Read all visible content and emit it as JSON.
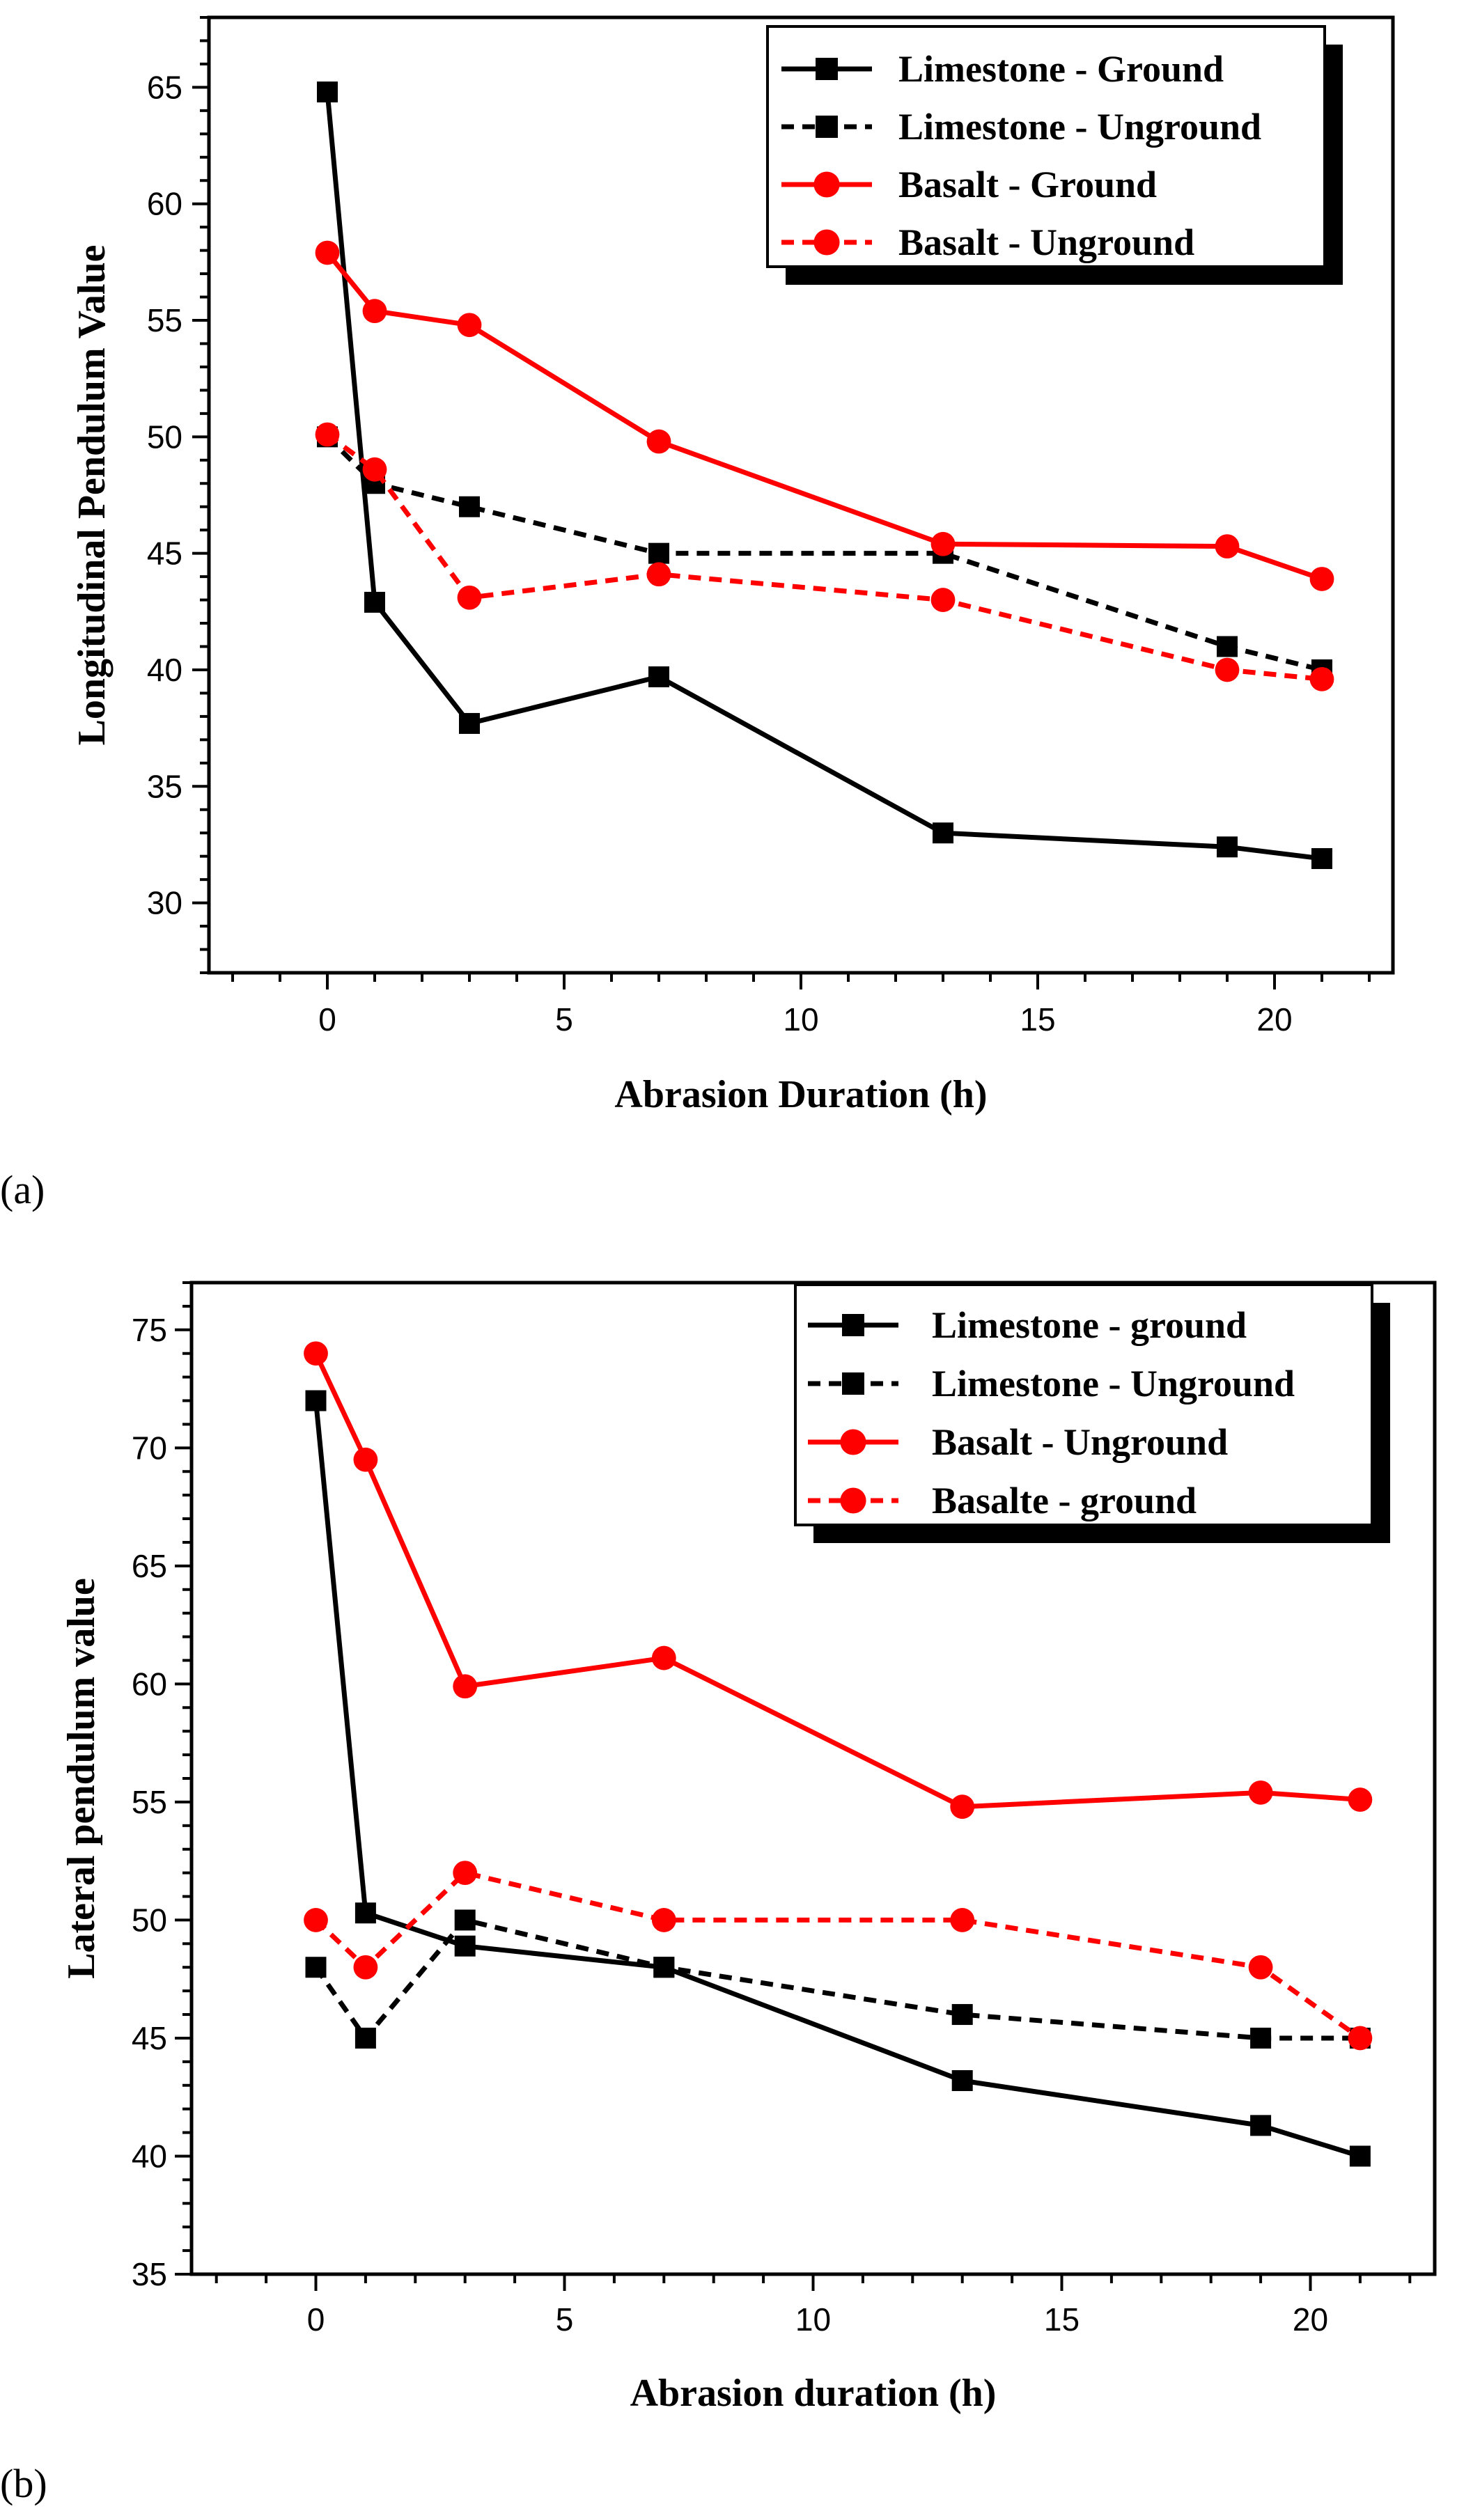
{
  "chart_data": [
    {
      "type": "line",
      "panel_label": "(a)",
      "xlabel": "Abrasion Duration (h)",
      "ylabel": "Longitudinal Pendulum Value",
      "xlim": [
        -2.5,
        22.5
      ],
      "ylim": [
        27,
        68
      ],
      "xticks": [
        0,
        5,
        10,
        15,
        20
      ],
      "yticks": [
        30,
        35,
        40,
        45,
        50,
        55,
        60,
        65
      ],
      "legend_position": "top-right",
      "series": [
        {
          "name": "Limestone - Ground",
          "color": "#000000",
          "dash": "solid",
          "marker": "square",
          "x": [
            0,
            1,
            3,
            7,
            13,
            19,
            21
          ],
          "y": [
            64.8,
            42.9,
            37.7,
            39.7,
            33.0,
            32.4,
            31.9
          ]
        },
        {
          "name": "Limestone - Unground",
          "color": "#000000",
          "dash": "dashed",
          "marker": "square",
          "x": [
            0,
            1,
            3,
            7,
            13,
            19,
            21
          ],
          "y": [
            50.0,
            48.0,
            47.0,
            45.0,
            45.0,
            41.0,
            40.0
          ]
        },
        {
          "name": "Basalt - Ground",
          "color": "#ff0000",
          "dash": "solid",
          "marker": "circle",
          "x": [
            0,
            1,
            3,
            7,
            13,
            19,
            21
          ],
          "y": [
            57.9,
            55.4,
            54.8,
            49.8,
            45.4,
            45.3,
            43.9
          ]
        },
        {
          "name": "Basalt - Unground",
          "color": "#ff0000",
          "dash": "dashed",
          "marker": "circle",
          "x": [
            0,
            1,
            3,
            7,
            13,
            19,
            21
          ],
          "y": [
            50.1,
            48.6,
            43.1,
            44.1,
            43.0,
            40.0,
            39.6
          ]
        }
      ]
    },
    {
      "type": "line",
      "panel_label": "(b)",
      "xlabel": "Abrasion duration (h)",
      "ylabel": "Lateral pendulum value",
      "xlim": [
        -2.5,
        22.5
      ],
      "ylim": [
        35,
        77
      ],
      "xticks": [
        0,
        5,
        10,
        15,
        20
      ],
      "yticks": [
        35,
        40,
        45,
        50,
        55,
        60,
        65,
        70,
        75
      ],
      "legend_position": "top-right",
      "series": [
        {
          "name": "Limestone - ground",
          "color": "#000000",
          "dash": "solid",
          "marker": "square",
          "x": [
            0,
            1,
            3,
            7,
            13,
            19,
            21
          ],
          "y": [
            72.0,
            50.3,
            48.9,
            48.0,
            43.2,
            41.3,
            40.0
          ]
        },
        {
          "name": "Limestone - Unground",
          "color": "#000000",
          "dash": "dashed",
          "marker": "square",
          "x": [
            0,
            1,
            3,
            7,
            13,
            19,
            21
          ],
          "y": [
            48.0,
            45.0,
            50.0,
            48.0,
            46.0,
            45.0,
            45.0
          ]
        },
        {
          "name": "Basalt - Unground",
          "color": "#ff0000",
          "dash": "solid",
          "marker": "circle",
          "x": [
            0,
            1,
            3,
            7,
            13,
            19,
            21
          ],
          "y": [
            74.0,
            69.5,
            59.9,
            61.1,
            54.8,
            55.4,
            55.1
          ]
        },
        {
          "name": "Basalte - ground",
          "color": "#ff0000",
          "dash": "dashed",
          "marker": "circle",
          "x": [
            0,
            1,
            3,
            7,
            13,
            19,
            21
          ],
          "y": [
            50.0,
            48.0,
            52.0,
            50.0,
            50.0,
            48.0,
            45.0
          ]
        }
      ]
    }
  ]
}
